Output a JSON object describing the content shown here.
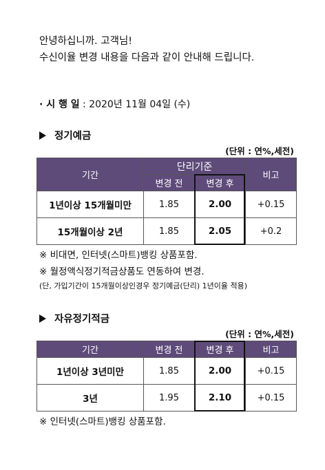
{
  "greeting": {
    "line1": "안녕하십니까. 고객님!",
    "line2": "수신이율 변경 내용을 다음과 같이 안내해 드립니다."
  },
  "effective": {
    "label": "· 시 행 일",
    "value": " : 2020년 11월 04일 (수)"
  },
  "section1": {
    "title": "정기예금",
    "unit": "(단위 : 연%,세전)",
    "headers": {
      "period": "기간",
      "group": "단리기준",
      "before": "변경 전",
      "after": "변경 후",
      "note": "비고"
    },
    "rows": [
      {
        "period": "1년이상 15개월미만",
        "before": "1.85",
        "after": "2.00",
        "note": "+0.15"
      },
      {
        "period": "15개월이상 2년",
        "before": "1.85",
        "after": "2.05",
        "note": "+0.2"
      }
    ],
    "notes": [
      "※ 비대면, 인터넷(스마트)뱅킹 상품포함.",
      "※ 월정액식정기적금상품도 연동하여 변경."
    ],
    "footnote": "(단, 가입기간이 15개월이상인경우 정기예금(단리) 1년이율 적용)"
  },
  "section2": {
    "title": "자유정기적금",
    "unit": "(단위 : 연%,세전)",
    "headers": {
      "period": "기간",
      "before": "변경 전",
      "after": "변경 후",
      "note": "비고"
    },
    "rows": [
      {
        "period": "1년이상 3년미만",
        "before": "1.85",
        "after": "2.00",
        "note": "+0.15"
      },
      {
        "period": "3년",
        "before": "1.95",
        "after": "2.10",
        "note": "+0.15"
      }
    ],
    "notes": [
      "※ 인터넷(스마트)뱅킹 상품포함."
    ]
  },
  "colors": {
    "header_bg": "#5e4b7a",
    "header_text": "#ffffff"
  }
}
